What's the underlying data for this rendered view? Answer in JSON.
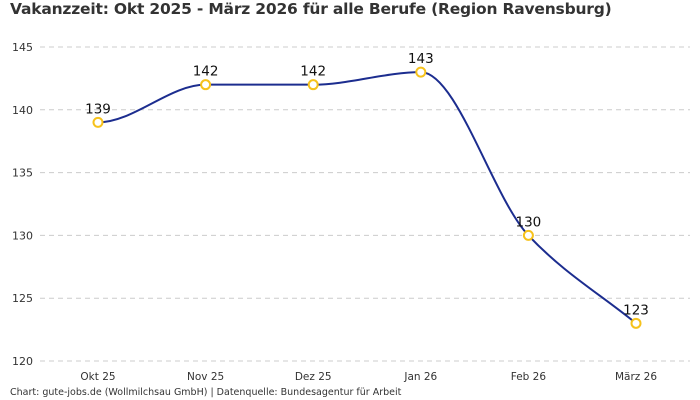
{
  "chart_data": {
    "type": "line",
    "title": "Vakanzzeit: Okt 2025 - März 2026 für alle Berufe (Region Ravensburg)",
    "categories": [
      "Okt 25",
      "Nov 25",
      "Dez 25",
      "Jan 26",
      "Feb 26",
      "März 26"
    ],
    "values": [
      139,
      142,
      142,
      143,
      130,
      123
    ],
    "data_labels": [
      "139",
      "142",
      "142",
      "143",
      "130",
      "123"
    ],
    "xlabel": "",
    "ylabel": "",
    "ylim": [
      120,
      145
    ],
    "yticks": [
      "120",
      "125",
      "130",
      "135",
      "140",
      "145"
    ],
    "grid": true,
    "smooth": true,
    "colors": {
      "line": "#1c2d8f",
      "marker_stroke": "#f6c21c",
      "marker_fill": "#ffffff",
      "grid": "#cccccc"
    }
  },
  "footer": "Chart: gute-jobs.de (Wollmilchsau GmbH) | Datenquelle: Bundesagentur für Arbeit"
}
